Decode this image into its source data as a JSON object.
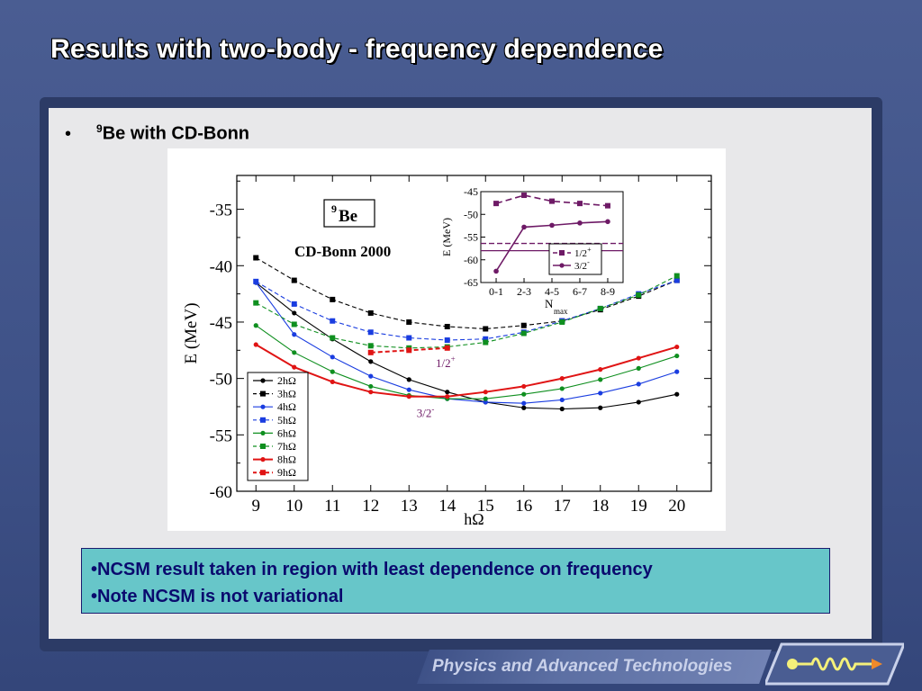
{
  "slide": {
    "title": "Results with two-body - frequency dependence",
    "bullet_sup": "9",
    "bullet_text": "Be with CD-Bonn",
    "notes": [
      "•NCSM result taken in region with least dependence on frequency",
      "•Note NCSM is not variational"
    ],
    "footer": "Physics and Advanced Technologies"
  },
  "colors": {
    "black": "#000000",
    "blue": "#1a3de0",
    "green": "#0f8f1f",
    "red": "#e01414",
    "purple": "#6e1a66"
  },
  "chart_data": [
    {
      "type": "line",
      "nucleus_label": "9",
      "nucleus_element": "Be",
      "title": "CD-Bonn 2000",
      "xlabel": "hΩ",
      "ylabel": "E (MeV)",
      "xlim": [
        8.5,
        20.9
      ],
      "ylim": [
        -60,
        -32
      ],
      "xticks": [
        9,
        10,
        11,
        12,
        13,
        14,
        15,
        16,
        17,
        18,
        19,
        20
      ],
      "yticks": [
        -35,
        -40,
        -45,
        -50,
        -55,
        -60
      ],
      "state_labels": [
        {
          "text": "1/2",
          "sup": "+",
          "x": 13.7,
          "y": -49.0
        },
        {
          "text": "3/2",
          "sup": "-",
          "x": 13.2,
          "y": -53.4
        }
      ],
      "legend_position": "lower-left",
      "series": [
        {
          "name": "2hΩ",
          "dashed": false,
          "marker": "circle",
          "color": "black",
          "x": [
            9,
            10,
            11,
            12,
            13,
            14,
            15,
            16,
            17,
            18,
            19,
            20
          ],
          "y": [
            -41.5,
            -44.2,
            -46.5,
            -48.5,
            -50.1,
            -51.2,
            -52.1,
            -52.6,
            -52.7,
            -52.6,
            -52.1,
            -51.4
          ]
        },
        {
          "name": "3hΩ",
          "dashed": true,
          "marker": "square",
          "color": "black",
          "x": [
            9,
            10,
            11,
            12,
            13,
            14,
            15,
            16,
            17,
            18,
            19,
            20
          ],
          "y": [
            -39.3,
            -41.3,
            -43.0,
            -44.2,
            -45.0,
            -45.4,
            -45.6,
            -45.3,
            -44.9,
            -43.9,
            -42.7,
            -41.3
          ]
        },
        {
          "name": "4hΩ",
          "dashed": false,
          "marker": "circle",
          "color": "blue",
          "x": [
            9,
            10,
            11,
            12,
            13,
            14,
            15,
            16,
            17,
            18,
            19,
            20
          ],
          "y": [
            -41.5,
            -46.1,
            -48.1,
            -49.8,
            -51.0,
            -51.8,
            -52.1,
            -52.2,
            -51.9,
            -51.3,
            -50.5,
            -49.4
          ]
        },
        {
          "name": "5hΩ",
          "dashed": true,
          "marker": "square",
          "color": "blue",
          "x": [
            9,
            10,
            11,
            12,
            13,
            14,
            15,
            16,
            17,
            18,
            19,
            20
          ],
          "y": [
            -41.4,
            -43.4,
            -44.9,
            -45.9,
            -46.4,
            -46.6,
            -46.5,
            -45.9,
            -44.9,
            -43.8,
            -42.5,
            -41.3
          ]
        },
        {
          "name": "6hΩ",
          "dashed": false,
          "marker": "circle",
          "color": "green",
          "x": [
            9,
            10,
            11,
            12,
            13,
            14,
            15,
            16,
            17,
            18,
            19,
            20
          ],
          "y": [
            -45.3,
            -47.7,
            -49.4,
            -50.7,
            -51.5,
            -51.8,
            -51.8,
            -51.4,
            -50.9,
            -50.1,
            -49.1,
            -48.0
          ]
        },
        {
          "name": "7hΩ",
          "dashed": true,
          "marker": "square",
          "color": "green",
          "x": [
            9,
            10,
            11,
            12,
            13,
            14,
            15,
            16,
            17,
            18,
            19,
            20
          ],
          "y": [
            -43.3,
            -45.2,
            -46.4,
            -47.1,
            -47.3,
            -47.2,
            -46.8,
            -46.0,
            -45.0,
            -43.8,
            -42.6,
            -40.9
          ]
        },
        {
          "name": "8hΩ",
          "dashed": false,
          "marker": "circle",
          "color": "red",
          "x": [
            9,
            10,
            11,
            12,
            13,
            14,
            15,
            16,
            17,
            18,
            19,
            20
          ],
          "y": [
            -47.0,
            -49.0,
            -50.3,
            -51.2,
            -51.6,
            -51.6,
            -51.2,
            -50.7,
            -50.0,
            -49.2,
            -48.2,
            -47.2
          ]
        },
        {
          "name": "9hΩ",
          "dashed": true,
          "marker": "square",
          "color": "red",
          "x": [
            12,
            13,
            14
          ],
          "y": [
            -47.7,
            -47.5,
            -47.3
          ]
        }
      ]
    },
    {
      "type": "line",
      "xlabel": "N",
      "xlabel_sub": "max",
      "ylabel": "E (MeV)",
      "categories": [
        "0-1",
        "2-3",
        "4-5",
        "6-7",
        "8-9"
      ],
      "ylim": [
        -65,
        -45
      ],
      "yticks": [
        -45,
        -50,
        -55,
        -60,
        -65
      ],
      "reference_lines": [
        {
          "y": -56.4,
          "dashed": true
        },
        {
          "y": -58.0,
          "dashed": false
        }
      ],
      "series": [
        {
          "name": "1/2",
          "sup": "+",
          "dashed": true,
          "marker": "square",
          "values": [
            -47.6,
            -45.8,
            -47.1,
            -47.6,
            -48.1
          ]
        },
        {
          "name": "3/2",
          "sup": "-",
          "dashed": false,
          "marker": "circle",
          "values": [
            -62.5,
            -52.8,
            -52.4,
            -51.9,
            -51.6
          ]
        }
      ]
    }
  ]
}
